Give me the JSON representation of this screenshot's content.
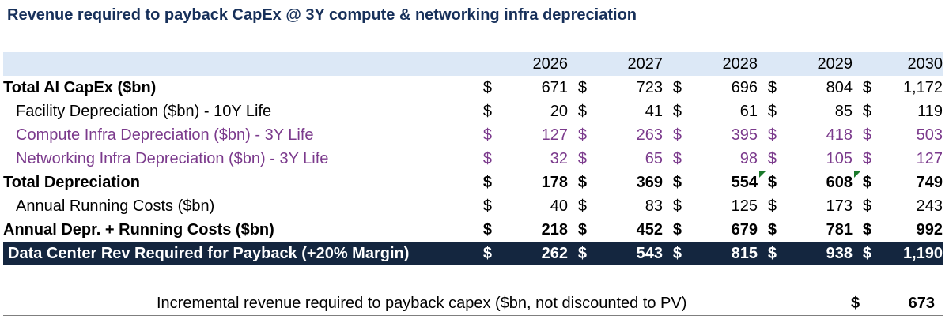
{
  "title": "Revenue required to payback CapEx @ 3Y compute & networking infra depreciation",
  "currency": "$",
  "years": [
    "2026",
    "2027",
    "2028",
    "2029",
    "2030"
  ],
  "rows": [
    {
      "label": "Total AI CapEx ($bn)",
      "values": [
        "671",
        "723",
        "696",
        "804",
        "1,172"
      ]
    },
    {
      "label": "Facility Depreciation ($bn) - 10Y Life",
      "values": [
        "20",
        "41",
        "61",
        "85",
        "119"
      ]
    },
    {
      "label": "Compute Infra Depreciation ($bn) - 3Y Life",
      "values": [
        "127",
        "263",
        "395",
        "418",
        "503"
      ]
    },
    {
      "label": "Networking Infra Depreciation ($bn) - 3Y Life",
      "values": [
        "32",
        "65",
        "98",
        "105",
        "127"
      ]
    },
    {
      "label": "Total Depreciation",
      "values": [
        "178",
        "369",
        "554",
        "608",
        "749"
      ]
    },
    {
      "label": "Annual Running Costs ($bn)",
      "values": [
        "40",
        "83",
        "125",
        "173",
        "243"
      ]
    },
    {
      "label": "Annual Depr. + Running Costs ($bn)",
      "values": [
        "218",
        "452",
        "679",
        "781",
        "992"
      ]
    },
    {
      "label": "Data Center Rev Required for Payback (+20% Margin)",
      "values": [
        "262",
        "543",
        "815",
        "938",
        "1,190"
      ]
    }
  ],
  "summary": {
    "label": "Incremental revenue required to payback capex ($bn, not discounted to PV)",
    "currency": "$",
    "value": "673"
  },
  "colors": {
    "title": "#17305a",
    "header_band": "#dce8f6",
    "purple_text": "#7b3a8c",
    "dark_band": "#14263f",
    "comment_marker": "#1a7a2a"
  }
}
